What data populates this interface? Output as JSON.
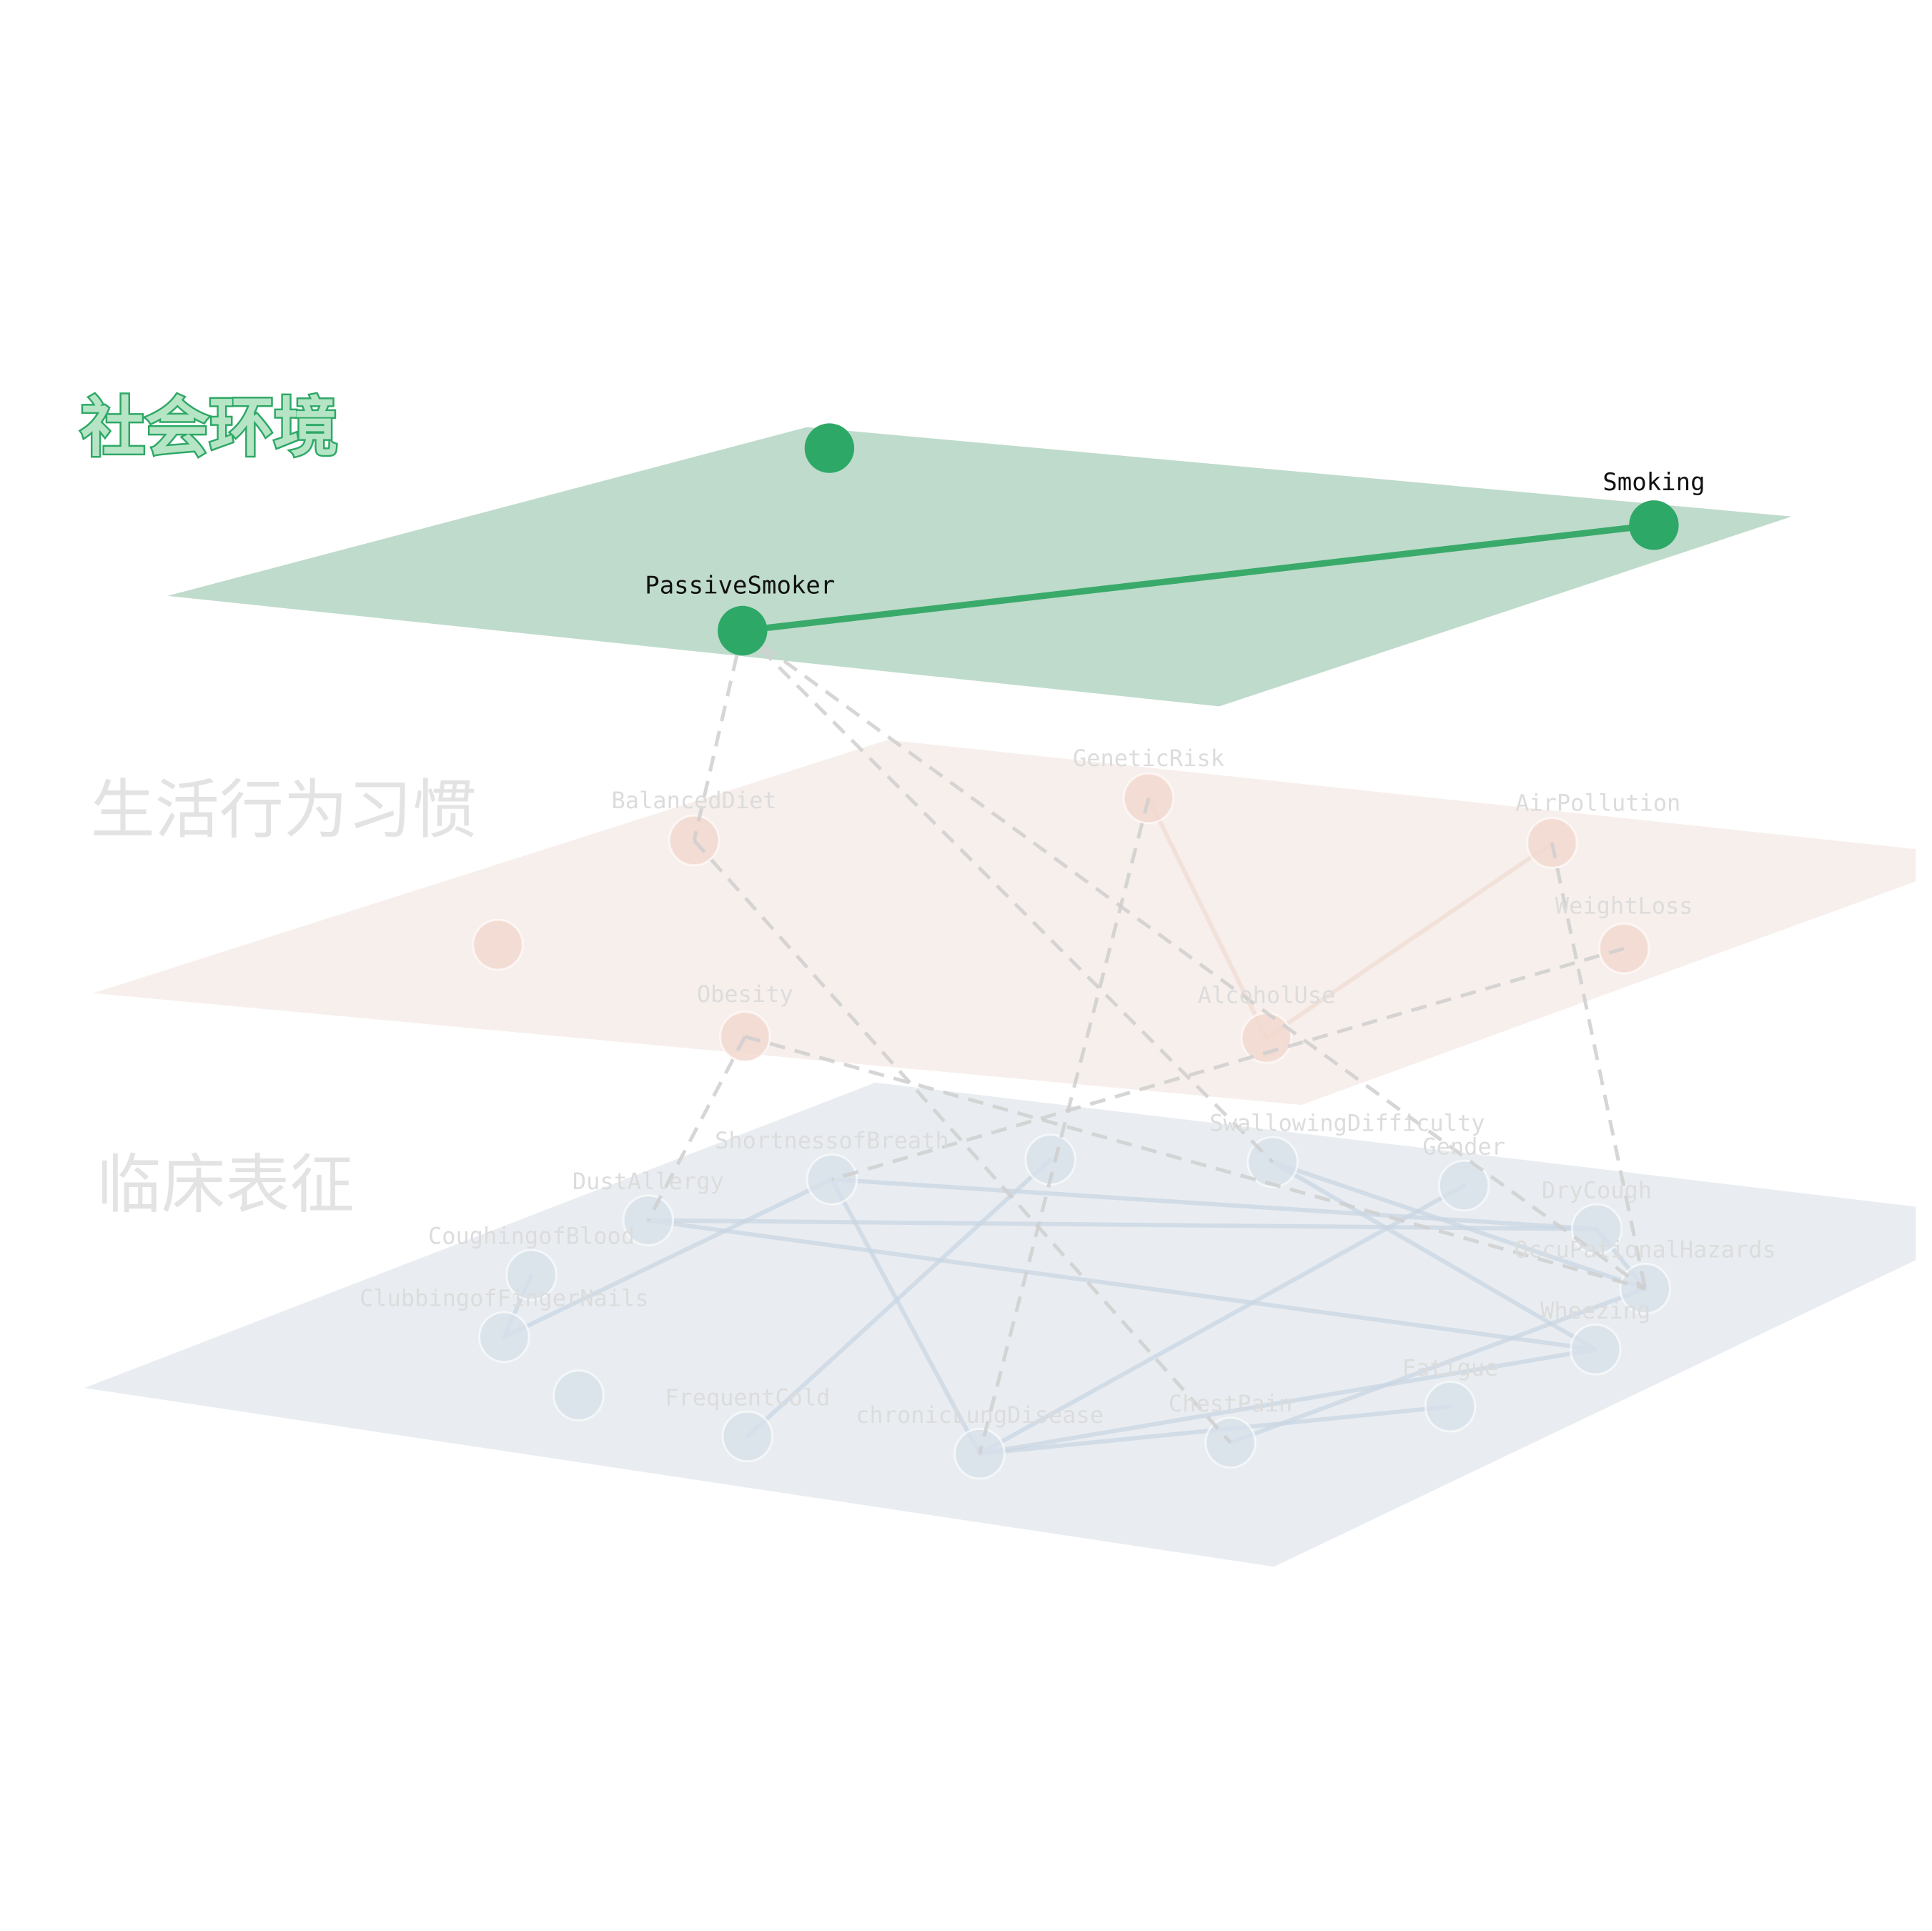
{
  "layers": [
    {
      "id": "social",
      "title": "社会环境",
      "plane_color": "#bfdbcc",
      "node_color": "#2ea866",
      "edge_color": "#3aaa6a",
      "highlighted": true,
      "nodes": [
        {
          "id": "s0",
          "label": ""
        },
        {
          "id": "Smoking",
          "label": "Smoking"
        },
        {
          "id": "PassiveSmoker",
          "label": "PassiveSmoker"
        }
      ],
      "edges": [
        [
          "PassiveSmoker",
          "Smoking"
        ]
      ]
    },
    {
      "id": "lifestyle",
      "title": "生活行为习惯",
      "plane_color": "#f7efec",
      "node_color": "#f2d8cf",
      "edge_color": "#f0dcd3",
      "highlighted": false,
      "nodes": [
        {
          "id": "GeneticRisk",
          "label": "GeneticRisk"
        },
        {
          "id": "BalancedDiet",
          "label": "BalancedDiet"
        },
        {
          "id": "AirPollution",
          "label": "AirPollution"
        },
        {
          "id": "WeightLoss",
          "label": "WeightLoss"
        },
        {
          "id": "l_unlabeled",
          "label": ""
        },
        {
          "id": "Obesity",
          "label": "Obesity"
        },
        {
          "id": "AlcoholUse",
          "label": "AlcoholUse"
        }
      ],
      "edges": [
        [
          "GeneticRisk",
          "AlcoholUse"
        ],
        [
          "AirPollution",
          "AlcoholUse"
        ]
      ]
    },
    {
      "id": "clinical",
      "title": "临床表征",
      "plane_color": "#e9edf1",
      "node_color": "#d8e1ea",
      "edge_color": "#c9d6e3",
      "highlighted": false,
      "nodes": [
        {
          "id": "ShortnessofBreath",
          "label": "ShortnessofBreath"
        },
        {
          "id": "c_mid",
          "label": ""
        },
        {
          "id": "SwallowingDifficulty",
          "label": "SwallowingDifficulty"
        },
        {
          "id": "Gender",
          "label": "Gender"
        },
        {
          "id": "DustAllergy",
          "label": "DustAllergy"
        },
        {
          "id": "DryCough",
          "label": "DryCough"
        },
        {
          "id": "CoughingofBlood",
          "label": "CoughingofBlood"
        },
        {
          "id": "OccuPationalHazards",
          "label": "OccuPationalHazards"
        },
        {
          "id": "ClubbingofFingerNails",
          "label": "ClubbingofFingerNails"
        },
        {
          "id": "Wheezing",
          "label": "Wheezing"
        },
        {
          "id": "c_low",
          "label": ""
        },
        {
          "id": "FrequentCold",
          "label": "FrequentCold"
        },
        {
          "id": "chronicLungDisease",
          "label": "chronicLungDisease"
        },
        {
          "id": "ChestPain",
          "label": "ChestPain"
        },
        {
          "id": "Fatigue",
          "label": "Fatigue"
        }
      ],
      "edges": [
        [
          "ShortnessofBreath",
          "DryCough"
        ],
        [
          "ShortnessofBreath",
          "chronicLungDisease"
        ],
        [
          "ShortnessofBreath",
          "ClubbingofFingerNails"
        ],
        [
          "DustAllergy",
          "DryCough"
        ],
        [
          "DustAllergy",
          "Wheezing"
        ],
        [
          "SwallowingDifficulty",
          "OccuPationalHazards"
        ],
        [
          "SwallowingDifficulty",
          "Wheezing"
        ],
        [
          "c_mid",
          "FrequentCold"
        ],
        [
          "Gender",
          "chronicLungDisease"
        ],
        [
          "CoughingofBlood",
          "ClubbingofFingerNails"
        ],
        [
          "chronicLungDisease",
          "Wheezing"
        ],
        [
          "chronicLungDisease",
          "Fatigue"
        ],
        [
          "DryCough",
          "OccuPationalHazards"
        ],
        [
          "OccuPationalHazards",
          "ChestPain"
        ]
      ]
    }
  ],
  "inter_layer_edges": [
    [
      "PassiveSmoker",
      "BalancedDiet"
    ],
    [
      "PassiveSmoker",
      "OccuPationalHazards"
    ],
    [
      "PassiveSmoker",
      "SwallowingDifficulty"
    ],
    [
      "BalancedDiet",
      "ChestPain"
    ],
    [
      "GeneticRisk",
      "chronicLungDisease"
    ],
    [
      "Obesity",
      "DustAllergy"
    ],
    [
      "Obesity",
      "OccuPationalHazards"
    ],
    [
      "WeightLoss",
      "ShortnessofBreath"
    ],
    [
      "AirPollution",
      "OccuPationalHazards"
    ]
  ],
  "inter_edge_color": "#cfcfcf"
}
